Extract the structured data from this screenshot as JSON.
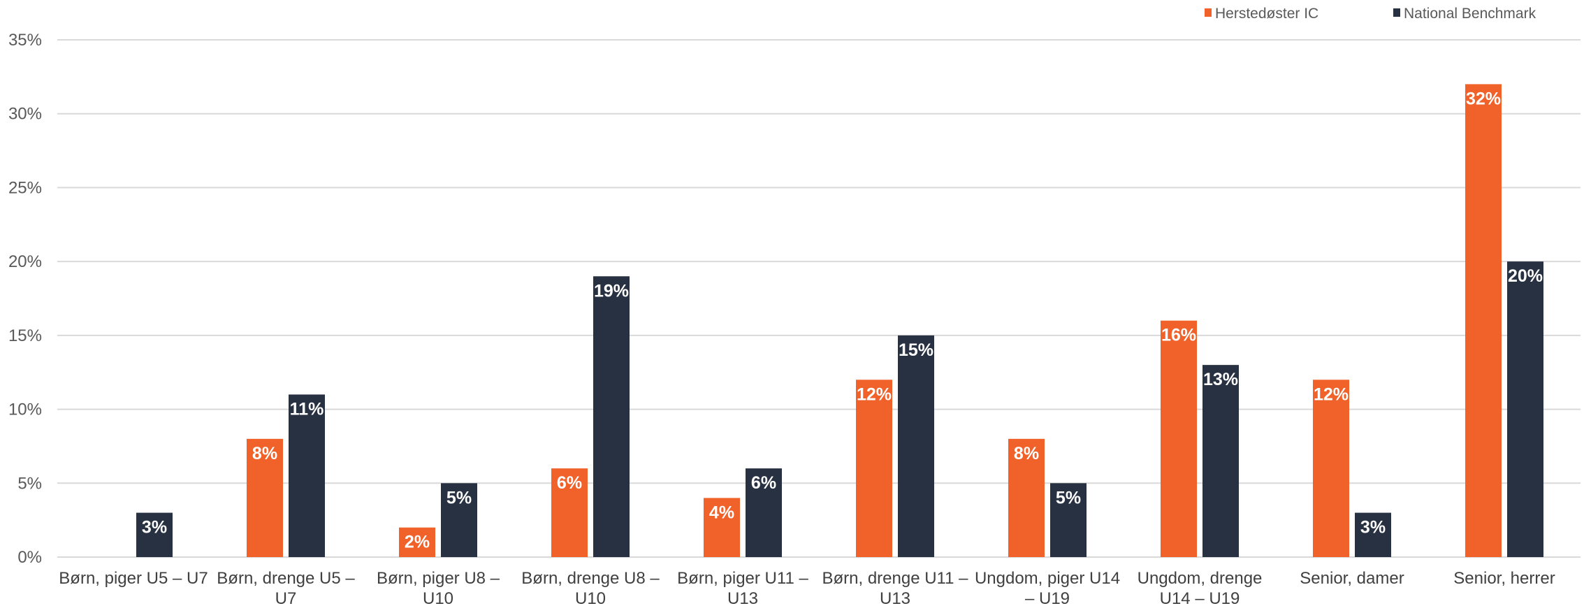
{
  "chart_data": {
    "type": "bar",
    "categories": [
      [
        "Børn, piger U5 – U7"
      ],
      [
        "Børn, drenge U5 –",
        "U7"
      ],
      [
        "Børn, piger U8 –",
        "U10"
      ],
      [
        "Børn, drenge U8 –",
        "U10"
      ],
      [
        "Børn, piger U11 –",
        "U13"
      ],
      [
        "Børn, drenge U11 –",
        "U13"
      ],
      [
        "Ungdom, piger U14",
        "– U19"
      ],
      [
        "Ungdom, drenge",
        "U14 – U19"
      ],
      [
        "Senior, damer"
      ],
      [
        "Senior, herrer"
      ]
    ],
    "series": [
      {
        "name": "Herstedøster IC",
        "color": "#F0622A",
        "values": [
          0,
          8,
          2,
          6,
          4,
          12,
          8,
          16,
          12,
          32
        ]
      },
      {
        "name": "National Benchmark",
        "color": "#283142",
        "values": [
          3,
          11,
          5,
          19,
          6,
          15,
          5,
          13,
          3,
          20
        ]
      }
    ],
    "y_ticks": [
      0,
      5,
      10,
      15,
      20,
      25,
      30,
      35
    ],
    "y_tick_suffix": "%",
    "ylim": [
      0,
      35
    ],
    "grid": true,
    "legend_position": "top-right",
    "data_label_suffix": "%"
  }
}
